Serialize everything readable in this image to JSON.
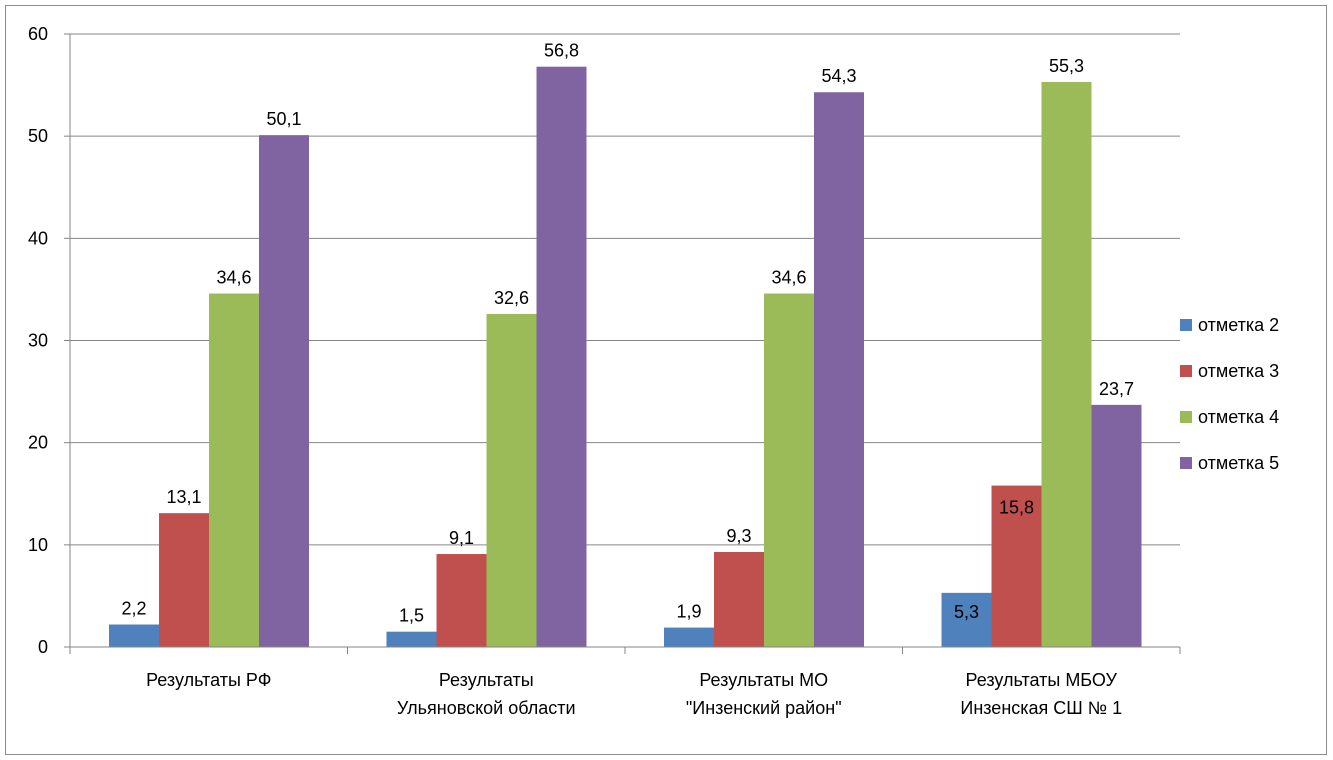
{
  "chart_data": {
    "type": "bar",
    "categories": [
      [
        "Результаты РФ"
      ],
      [
        "Результаты",
        "Ульяновской области"
      ],
      [
        "Результаты МО",
        "\"Инзенский район\""
      ],
      [
        "Результаты МБОУ",
        "Инзенская СШ № 1"
      ]
    ],
    "series": [
      {
        "name": "отметка 2",
        "color": "#4F81BD",
        "values": [
          2.2,
          1.5,
          1.9,
          5.3
        ],
        "labels": [
          "2,2",
          "1,5",
          "1,9",
          "5,3"
        ]
      },
      {
        "name": "отметка 3",
        "color": "#C0504D",
        "values": [
          13.1,
          9.1,
          9.3,
          15.8
        ],
        "labels": [
          "13,1",
          "9,1",
          "9,3",
          "15,8"
        ]
      },
      {
        "name": "отметка 4",
        "color": "#9BBB59",
        "values": [
          34.6,
          32.6,
          34.6,
          55.3
        ],
        "labels": [
          "34,6",
          "32,6",
          "34,6",
          "55,3"
        ]
      },
      {
        "name": "отметка 5",
        "color": "#8064A2",
        "values": [
          50.1,
          56.8,
          54.3,
          23.7
        ],
        "labels": [
          "50,1",
          "56,8",
          "54,3",
          "23,7"
        ]
      }
    ],
    "ylim": [
      0,
      60
    ],
    "yticks": [
      0,
      10,
      20,
      30,
      40,
      50,
      60
    ],
    "grid": true,
    "legend": "right"
  }
}
